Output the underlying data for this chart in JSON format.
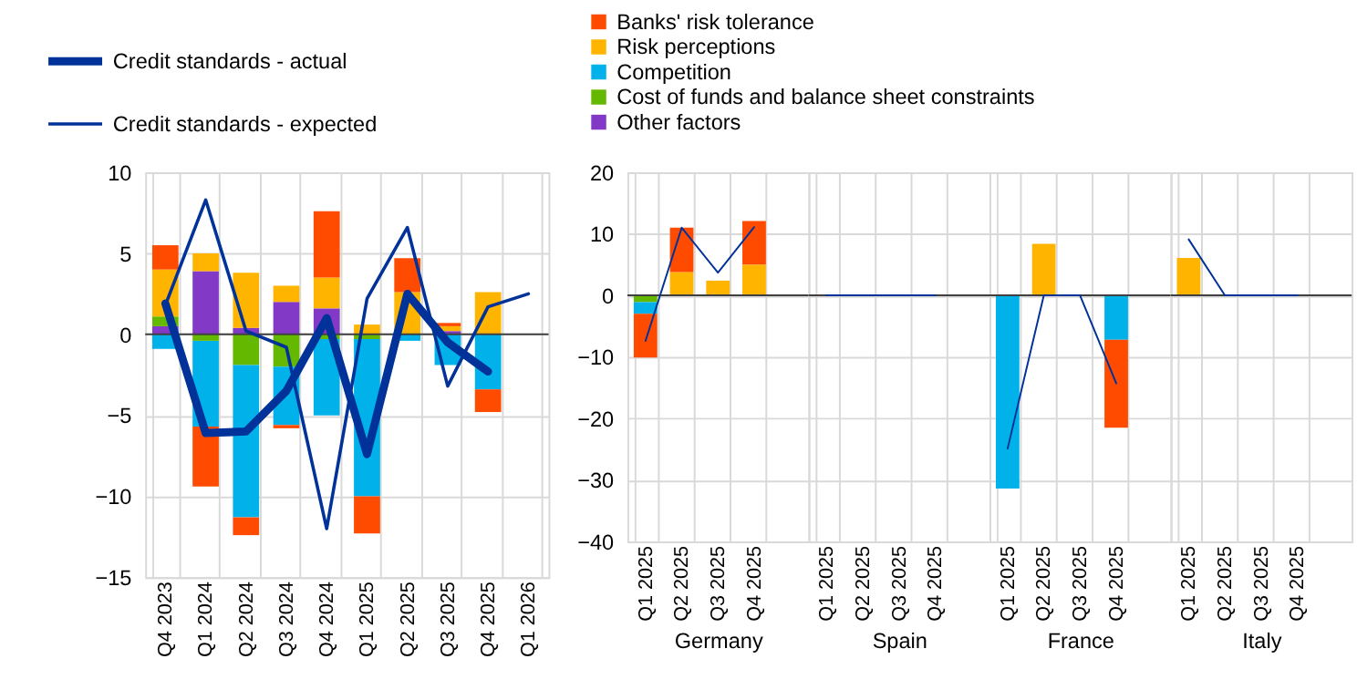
{
  "chart_data": [
    {
      "type": "bar",
      "stacked": true,
      "categories": [
        "Q4 2023",
        "Q1 2024",
        "Q2 2024",
        "Q3 2024",
        "Q4 2024",
        "Q1 2025",
        "Q2 2025",
        "Q3 2025",
        "Q4 2025",
        "Q1 2026"
      ],
      "ylim": [
        -15,
        10
      ],
      "yticks": [
        -15,
        -10,
        -5,
        0,
        5,
        10
      ],
      "grid": true,
      "legend": "top left",
      "ref_lines": [
        {
          "axis": "y",
          "value": 0,
          "color": "#404040"
        }
      ],
      "series": [
        {
          "color": "#8139c6",
          "values": [
            0.5,
            3.9,
            0.4,
            2.0,
            1.6,
            null,
            null,
            0.2,
            null,
            null
          ]
        },
        {
          "color": "#65b800",
          "values": [
            0.6,
            -0.4,
            -1.9,
            -2.0,
            -0.3,
            -0.3,
            null,
            null,
            null,
            null
          ]
        },
        {
          "color": "#00b1ea",
          "values": [
            -0.9,
            -5.3,
            -9.4,
            -3.6,
            -4.7,
            -9.7,
            -0.4,
            -1.9,
            -3.4,
            null
          ]
        },
        {
          "color": "#ffb400",
          "values": [
            2.9,
            1.1,
            3.4,
            1.0,
            1.9,
            0.6,
            2.6,
            0.3,
            2.6,
            null
          ]
        },
        {
          "color": "#ff4b00",
          "values": [
            1.5,
            -3.7,
            -1.1,
            -0.2,
            4.1,
            -2.3,
            2.1,
            0.2,
            -1.4,
            null
          ]
        },
        {
          "type": "line",
          "name": "Credit standards - actual",
          "color": "#003299",
          "line_style": "solid",
          "values": [
            1.9,
            -6.1,
            -6.0,
            -3.5,
            1.0,
            -7.4,
            2.5,
            -0.5,
            -2.3,
            null
          ]
        },
        {
          "type": "line",
          "name": "Credit standards - expected",
          "color": "#003299",
          "line_style": "solid",
          "values": [
            1.8,
            8.3,
            0.2,
            -0.8,
            -12.0,
            2.2,
            6.6,
            -3.2,
            1.7,
            2.5
          ]
        }
      ]
    },
    {
      "type": "bar",
      "stacked": true,
      "categories": [
        "Q1 2025",
        "Q2 2025",
        "Q3 2025",
        "Q4 2025"
      ],
      "xlabel": "Germany",
      "ylim": [
        -40,
        20
      ],
      "yticks": [
        -40,
        -30,
        -20,
        -10,
        0,
        10,
        20
      ],
      "grid": true,
      "legend": "top",
      "ref_lines": [
        {
          "axis": "y",
          "value": 0,
          "color": "#404040"
        }
      ],
      "series": [
        {
          "name": "Other factors",
          "color": "#8139c6",
          "values": [
            null,
            null,
            null,
            null
          ]
        },
        {
          "name": "Cost of funds and balance sheet constraints",
          "color": "#65b800",
          "values": [
            -1.1,
            null,
            null,
            null
          ]
        },
        {
          "name": "Competition",
          "color": "#00b1ea",
          "values": [
            -1.9,
            null,
            null,
            null
          ]
        },
        {
          "name": "Risk perceptions",
          "color": "#ffb400",
          "values": [
            null,
            3.8,
            2.4,
            5.0
          ]
        },
        {
          "name": "Banks' risk tolerance",
          "color": "#ff4b00",
          "values": [
            -7.1,
            7.2,
            null,
            7.1
          ]
        },
        {
          "type": "line",
          "color": "#003299",
          "line_style": "solid",
          "values": [
            -7.4,
            11.0,
            3.7,
            11.1
          ]
        }
      ]
    },
    {
      "type": "line",
      "categories": [
        "Q1 2025",
        "Q2 2025",
        "Q3 2025",
        "Q4 2025"
      ],
      "xlabel": "Spain",
      "ylim": [
        -40,
        20
      ],
      "yticks": [
        -40,
        -30,
        -20,
        -10,
        0,
        10,
        20
      ],
      "grid": true,
      "tick_labels": "x",
      "ref_lines": [
        {
          "axis": "y",
          "value": 0,
          "color": "#404040"
        }
      ],
      "series": [
        {
          "type": "line",
          "color": "#003299",
          "line_style": "solid",
          "values": [
            0,
            0,
            0,
            0
          ]
        }
      ]
    },
    {
      "type": "bar",
      "stacked": true,
      "categories": [
        "Q1 2025",
        "Q2 2025",
        "Q3 2025",
        "Q4 2025"
      ],
      "xlabel": "France",
      "ylim": [
        -40,
        20
      ],
      "yticks": [
        -40,
        -30,
        -20,
        -10,
        0,
        10,
        20
      ],
      "grid": true,
      "tick_labels": "x",
      "ref_lines": [
        {
          "axis": "y",
          "value": 0,
          "color": "#404040"
        }
      ],
      "series": [
        {
          "color": "#00b1ea",
          "values": [
            -31.4,
            null,
            null,
            -7.2
          ]
        },
        {
          "color": "#ffb400",
          "values": [
            null,
            8.4,
            null,
            null
          ]
        },
        {
          "color": "#ff4b00",
          "values": [
            null,
            null,
            null,
            -14.3
          ]
        },
        {
          "type": "line",
          "color": "#003299",
          "line_style": "solid",
          "values": [
            -24.9,
            0,
            0,
            -14.3
          ]
        }
      ]
    },
    {
      "type": "bar",
      "stacked": true,
      "categories": [
        "Q1 2025",
        "Q2 2025",
        "Q3 2025",
        "Q4 2025"
      ],
      "xlabel": "Italy",
      "ylim": [
        -40,
        20
      ],
      "yticks": [
        -40,
        -30,
        -20,
        -10,
        0,
        10,
        20
      ],
      "grid": true,
      "tick_labels": "x",
      "ref_lines": [
        {
          "axis": "y",
          "value": 0,
          "color": "#404040"
        }
      ],
      "series": [
        {
          "color": "#ffb400",
          "values": [
            6.1,
            null,
            null,
            null
          ]
        },
        {
          "type": "line",
          "color": "#003299",
          "line_style": "solid",
          "values": [
            9.1,
            0,
            0,
            0
          ]
        }
      ]
    }
  ]
}
